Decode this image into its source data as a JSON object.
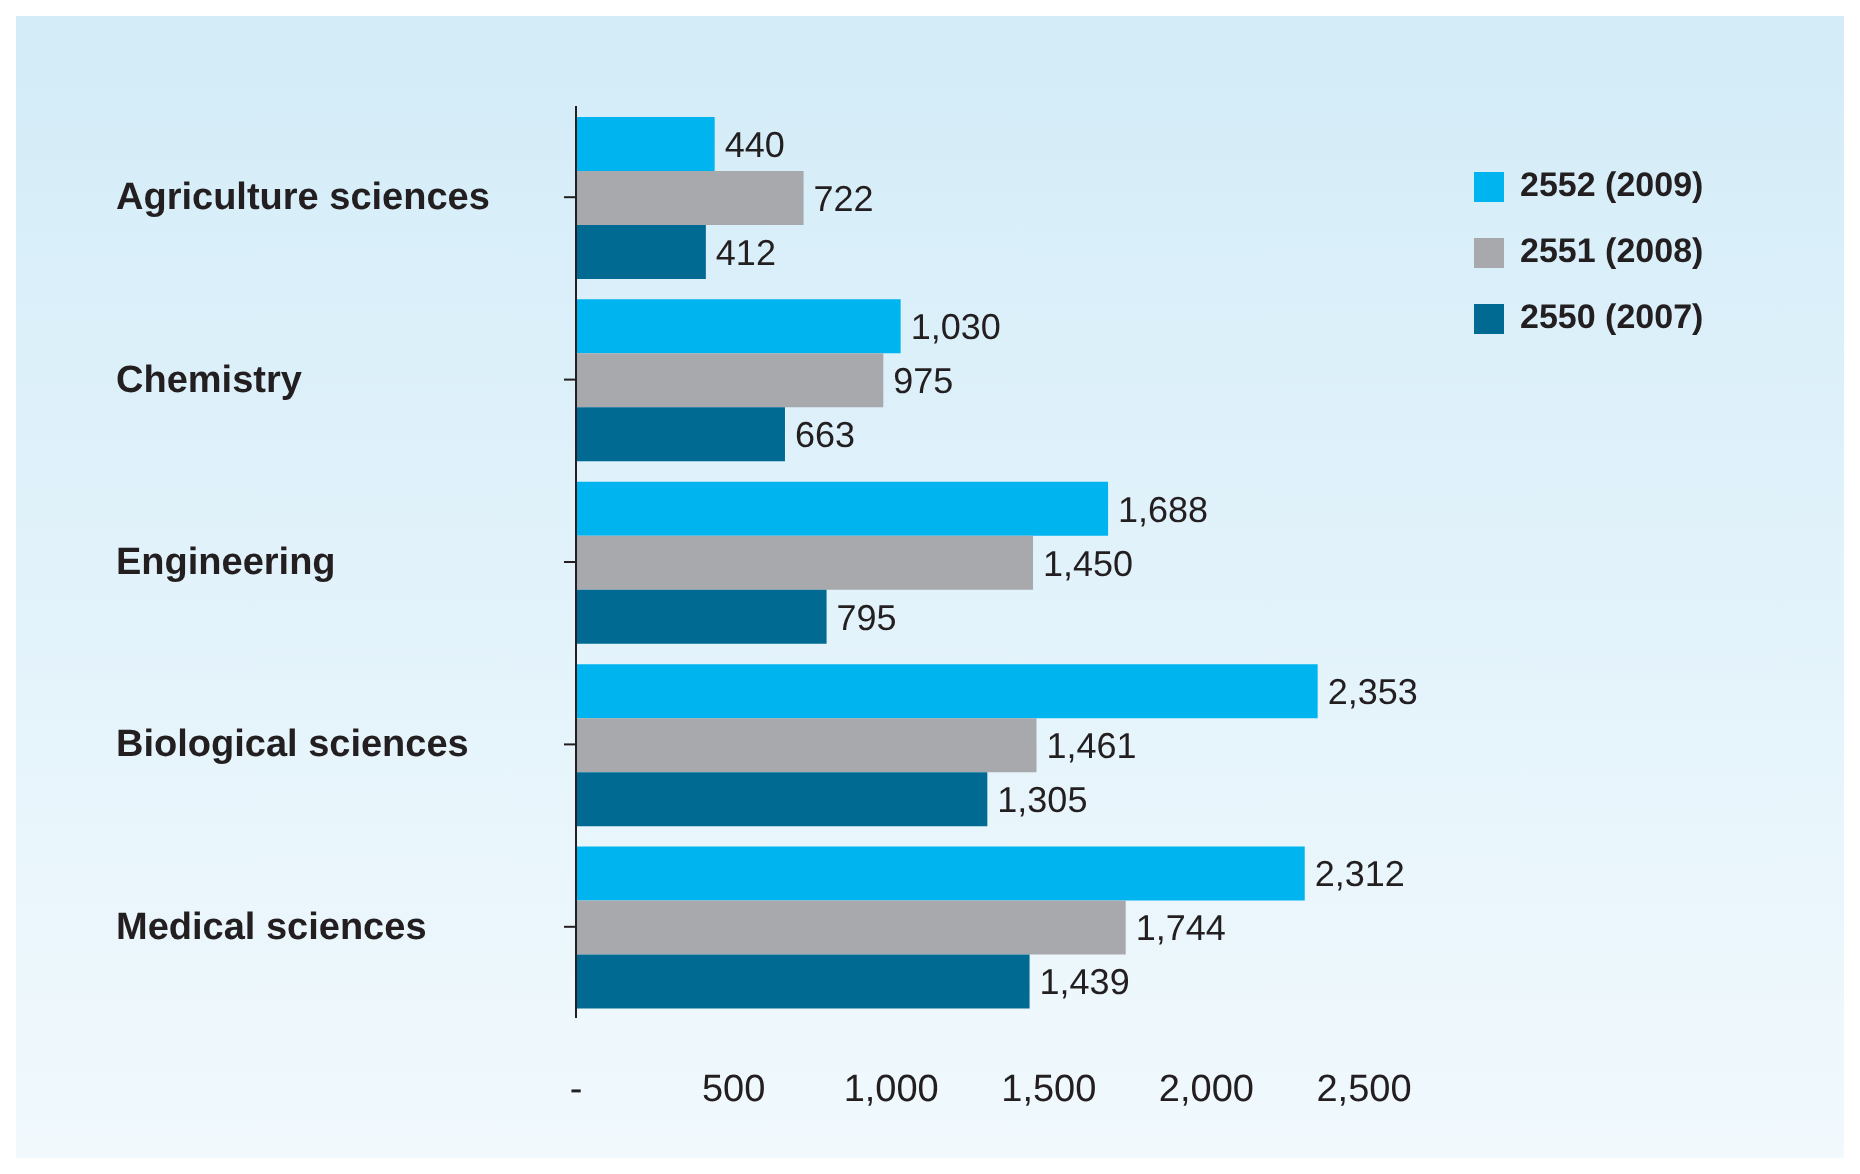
{
  "chart_data": {
    "type": "bar",
    "orientation": "horizontal",
    "categories": [
      "Agriculture sciences",
      "Chemistry",
      "Engineering",
      "Biological sciences",
      "Medical sciences"
    ],
    "series": [
      {
        "name": "2552 (2009)",
        "color": "#00b5ef",
        "values": [
          440,
          1030,
          1688,
          2353,
          2312
        ],
        "value_labels": [
          "440",
          "1,030",
          "1,688",
          "2,353",
          "2,312"
        ]
      },
      {
        "name": "2551 (2008)",
        "color": "#a7a9ac",
        "values": [
          722,
          975,
          1450,
          1461,
          1744
        ],
        "value_labels": [
          "722",
          "975",
          "1,450",
          "1,461",
          "1,744"
        ]
      },
      {
        "name": "2550 (2007)",
        "color": "#006a93",
        "values": [
          412,
          663,
          795,
          1305,
          1439
        ],
        "value_labels": [
          "412",
          "663",
          "795",
          "1,305",
          "1,439"
        ]
      }
    ],
    "xlim": [
      0,
      2500
    ],
    "xticks": [
      {
        "value": 0,
        "label": "-"
      },
      {
        "value": 500,
        "label": "500"
      },
      {
        "value": 1000,
        "label": "1,000"
      },
      {
        "value": 1500,
        "label": "1,500"
      },
      {
        "value": 2000,
        "label": "2,000"
      },
      {
        "value": 2500,
        "label": "2,500"
      }
    ],
    "grid": false,
    "legend": "top right"
  }
}
